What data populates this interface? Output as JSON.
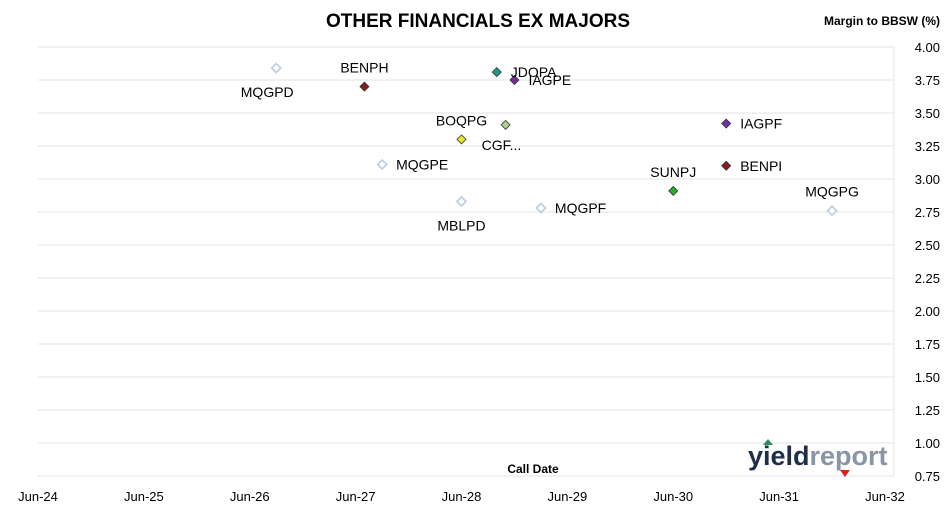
{
  "chart_data": {
    "type": "scatter",
    "title": "OTHER FINANCIALS EX MAJORS",
    "ylabel": "Margin to BBSW (%)",
    "xlabel": "Call Date",
    "ylim": [
      0.75,
      4.0
    ],
    "y_ticks": [
      "4.00",
      "3.75",
      "3.50",
      "3.25",
      "3.00",
      "2.75",
      "2.50",
      "2.25",
      "2.00",
      "1.75",
      "1.50",
      "1.25",
      "1.00",
      "0.75"
    ],
    "x_ticks": [
      "Jun-24",
      "Jun-25",
      "Jun-26",
      "Jun-27",
      "Jun-28",
      "Jun-29",
      "Jun-30",
      "Jun-31",
      "Jun-32"
    ],
    "y_axis_side": "right",
    "grid": "horizontal",
    "points": [
      {
        "name": "MQGPD",
        "x": "Sep-26",
        "y": 3.84,
        "color": "#b8cce4",
        "filled": false,
        "label_pos": "below-left"
      },
      {
        "name": "BENPH",
        "x": "Jul-27",
        "y": 3.7,
        "color": "#8b1a1a",
        "filled": true,
        "label_pos": "above"
      },
      {
        "name": "JDOPA",
        "x": "Oct-28",
        "y": 3.81,
        "color": "#1a9b8a",
        "filled": true,
        "label_pos": "right"
      },
      {
        "name": "IAGPE",
        "x": "Dec-28",
        "y": 3.75,
        "color": "#7030a0",
        "filled": true,
        "label_pos": "right"
      },
      {
        "name": "BOQPG",
        "x": "Jun-28",
        "y": 3.3,
        "color": "#e6e62e",
        "filled": true,
        "label_pos": "above"
      },
      {
        "name": "CGF...",
        "x": "Nov-28",
        "y": 3.41,
        "color": "#a9d18e",
        "filled": true,
        "label_pos": "below-right"
      },
      {
        "name": "MQGPE",
        "x": "Sep-27",
        "y": 3.11,
        "color": "#b8cce4",
        "filled": false,
        "label_pos": "right"
      },
      {
        "name": "MBLPD",
        "x": "Jun-28",
        "y": 2.83,
        "color": "#b8cce4",
        "filled": false,
        "label_pos": "below"
      },
      {
        "name": "MQGPF",
        "x": "Mar-29",
        "y": 2.78,
        "color": "#b8cce4",
        "filled": false,
        "label_pos": "right"
      },
      {
        "name": "SUNPJ",
        "x": "Jun-30",
        "y": 2.91,
        "color": "#22b022",
        "filled": true,
        "label_pos": "above"
      },
      {
        "name": "IAGPF",
        "x": "Dec-30",
        "y": 3.42,
        "color": "#7030a0",
        "filled": true,
        "label_pos": "right"
      },
      {
        "name": "BENPI",
        "x": "Dec-30",
        "y": 3.1,
        "color": "#8b1a1a",
        "filled": true,
        "label_pos": "right"
      },
      {
        "name": "MQGPG",
        "x": "Dec-31",
        "y": 2.76,
        "color": "#b8cce4",
        "filled": false,
        "label_pos": "above"
      }
    ]
  },
  "logo": {
    "part1": "yield",
    "part2": "report",
    "color1": "#1f2f4a",
    "color2": "#8a96a4",
    "up_color": "#2e8b57",
    "down_color": "#e02020"
  }
}
